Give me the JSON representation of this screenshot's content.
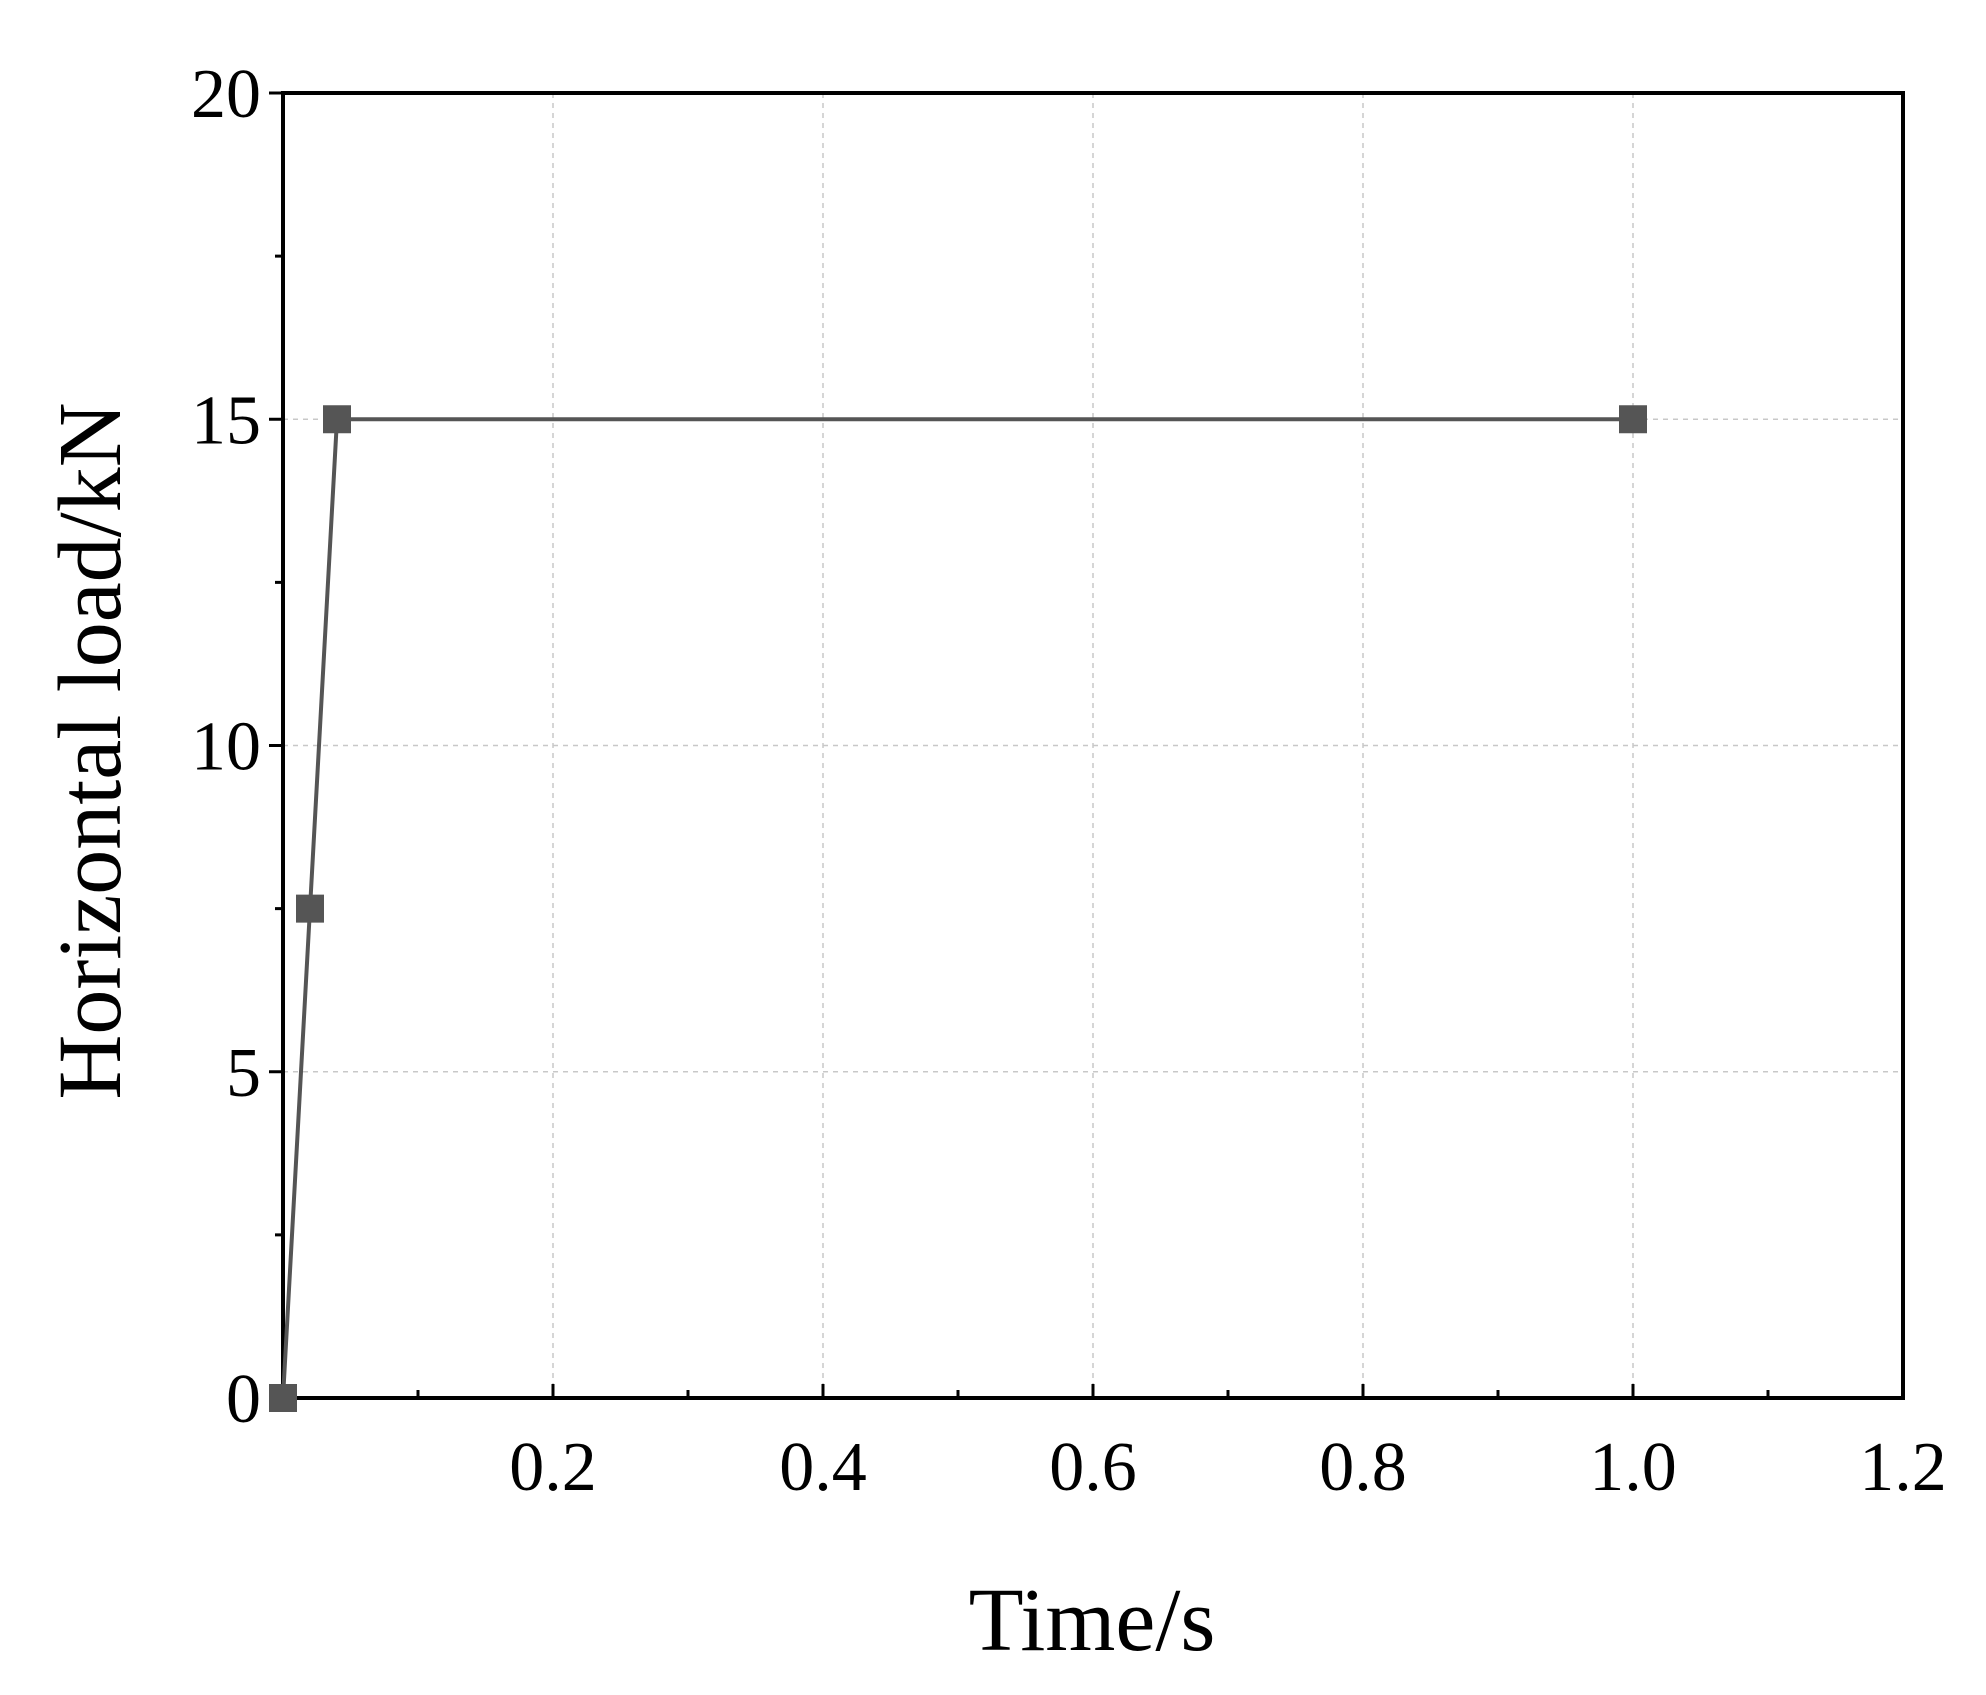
{
  "chart_data": {
    "type": "line",
    "x_label": "Time/s",
    "y_label": "Horizontal load/kN",
    "x": [
      0,
      0.02,
      0.04,
      1.0
    ],
    "series": [
      {
        "color": "#555555",
        "values": [
          0,
          7.5,
          15,
          15
        ]
      }
    ],
    "xlim": [
      0,
      1.2
    ],
    "xticks": [
      0.2,
      0.4,
      0.6,
      0.8,
      {
        "value": 1.0,
        "label": "1.0"
      },
      1.2
    ],
    "ylim": [
      0,
      20
    ],
    "yticks": [
      0,
      5,
      10,
      15,
      20
    ],
    "grid": true
  }
}
